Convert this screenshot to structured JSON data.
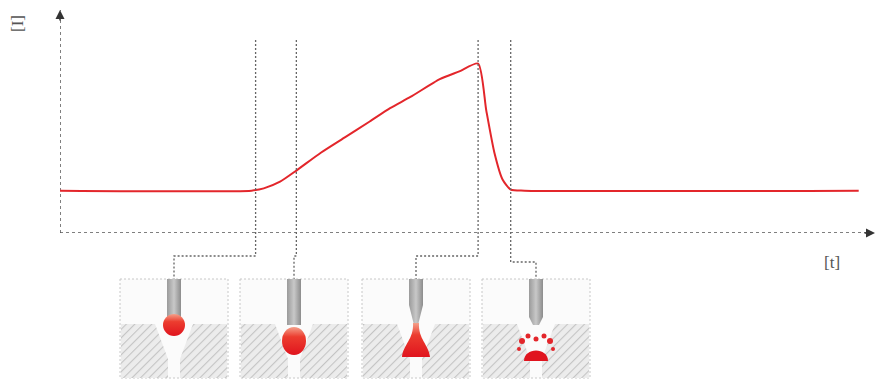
{
  "chart_data": {
    "type": "line",
    "x_label": "[t]",
    "y_label": "[I]",
    "x": [
      0,
      23.5,
      25,
      27,
      29,
      32,
      35,
      38,
      40.5,
      43,
      46.6,
      49,
      51.3,
      52.3,
      53.3,
      54.3,
      55.3,
      57,
      98
    ],
    "values": [
      19,
      19,
      20,
      23,
      28,
      36,
      43,
      50,
      56,
      61,
      69,
      72.5,
      76,
      55,
      36,
      24,
      19.5,
      19,
      19
    ],
    "color": "#e3262b",
    "xlim": [
      0,
      100
    ],
    "ylim": [
      0,
      100
    ],
    "xticks": [],
    "yticks": [],
    "tick_labels": false,
    "grid": false,
    "line_style": "solid",
    "events_x": [
      24,
      29,
      51.3,
      55.3
    ]
  }
}
